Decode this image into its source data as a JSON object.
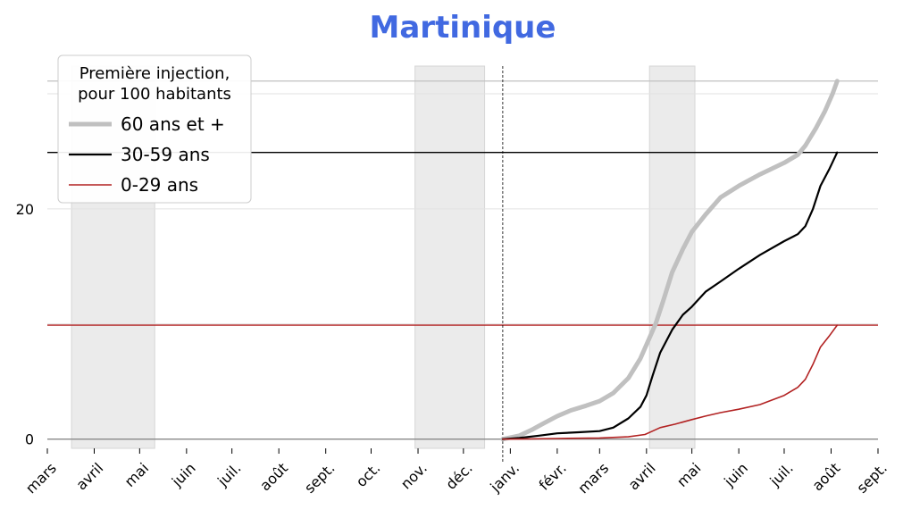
{
  "chart_data": {
    "type": "line",
    "title": "Martinique",
    "ylim": [
      -0.8,
      32.4
    ],
    "y_ticks": [
      0,
      20
    ],
    "x_ticks": [
      "mars",
      "avril",
      "mai",
      "juin",
      "juil.",
      "août",
      "sept.",
      "oct.",
      "nov.",
      "déc.",
      "janv.",
      "févr.",
      "mars",
      "avril",
      "mai",
      "juin",
      "juil.",
      "août",
      "sept."
    ],
    "x_tick_dates": [
      "2020-03-01",
      "2020-04-01",
      "2020-05-01",
      "2020-06-01",
      "2020-07-01",
      "2020-08-01",
      "2020-09-01",
      "2020-10-01",
      "2020-11-01",
      "2020-12-01",
      "2021-01-01",
      "2021-02-01",
      "2021-03-01",
      "2021-04-01",
      "2021-05-01",
      "2021-06-01",
      "2021-07-01",
      "2021-08-01",
      "2021-09-01"
    ],
    "x_range": [
      "2020-03-01",
      "2021-09-01"
    ],
    "lockdown_periods": [
      [
        "2020-03-17",
        "2020-05-11"
      ],
      [
        "2020-10-30",
        "2020-12-15"
      ],
      [
        "2021-04-03",
        "2021-05-03"
      ]
    ],
    "vaccination_start": "2020-12-27",
    "legend_title": "Première injection,\npour 100 habitants",
    "legend_position": "top-left",
    "grid": "horizontal",
    "series": [
      {
        "name": "60 ans et +",
        "color": "#c0c0c0",
        "points": [
          [
            "2020-12-27",
            0.0
          ],
          [
            "2021-01-07",
            0.3
          ],
          [
            "2021-01-15",
            0.8
          ],
          [
            "2021-01-22",
            1.3
          ],
          [
            "2021-02-01",
            2.0
          ],
          [
            "2021-02-10",
            2.5
          ],
          [
            "2021-02-20",
            2.9
          ],
          [
            "2021-03-01",
            3.3
          ],
          [
            "2021-03-10",
            4.0
          ],
          [
            "2021-03-20",
            5.3
          ],
          [
            "2021-03-28",
            7.0
          ],
          [
            "2021-04-02",
            8.5
          ],
          [
            "2021-04-07",
            10.0
          ],
          [
            "2021-04-12",
            12.0
          ],
          [
            "2021-04-18",
            14.5
          ],
          [
            "2021-04-25",
            16.5
          ],
          [
            "2021-05-01",
            18.0
          ],
          [
            "2021-05-10",
            19.5
          ],
          [
            "2021-05-20",
            21.0
          ],
          [
            "2021-06-01",
            22.0
          ],
          [
            "2021-06-15",
            23.0
          ],
          [
            "2021-07-01",
            24.0
          ],
          [
            "2021-07-10",
            24.7
          ],
          [
            "2021-07-15",
            25.5
          ],
          [
            "2021-07-22",
            27.0
          ],
          [
            "2021-07-28",
            28.5
          ],
          [
            "2021-08-02",
            30.0
          ],
          [
            "2021-08-05",
            31.1
          ]
        ]
      },
      {
        "name": "30-59 ans",
        "color": "#000000",
        "points": [
          [
            "2020-12-27",
            0.0
          ],
          [
            "2021-01-07",
            0.1
          ],
          [
            "2021-01-20",
            0.3
          ],
          [
            "2021-02-01",
            0.5
          ],
          [
            "2021-02-15",
            0.6
          ],
          [
            "2021-03-01",
            0.7
          ],
          [
            "2021-03-10",
            1.0
          ],
          [
            "2021-03-20",
            1.8
          ],
          [
            "2021-03-28",
            2.8
          ],
          [
            "2021-04-01",
            3.8
          ],
          [
            "2021-04-05",
            5.5
          ],
          [
            "2021-04-10",
            7.5
          ],
          [
            "2021-04-18",
            9.5
          ],
          [
            "2021-04-25",
            10.8
          ],
          [
            "2021-05-01",
            11.5
          ],
          [
            "2021-05-10",
            12.8
          ],
          [
            "2021-05-20",
            13.7
          ],
          [
            "2021-06-01",
            14.8
          ],
          [
            "2021-06-15",
            16.0
          ],
          [
            "2021-07-01",
            17.2
          ],
          [
            "2021-07-10",
            17.8
          ],
          [
            "2021-07-15",
            18.5
          ],
          [
            "2021-07-20",
            20.0
          ],
          [
            "2021-07-25",
            22.0
          ],
          [
            "2021-07-31",
            23.5
          ],
          [
            "2021-08-05",
            24.9
          ]
        ]
      },
      {
        "name": "0-29 ans",
        "color": "#b22222",
        "points": [
          [
            "2020-12-27",
            0.0
          ],
          [
            "2021-01-15",
            0.02
          ],
          [
            "2021-02-01",
            0.05
          ],
          [
            "2021-03-01",
            0.1
          ],
          [
            "2021-03-20",
            0.2
          ],
          [
            "2021-03-31",
            0.4
          ],
          [
            "2021-04-05",
            0.7
          ],
          [
            "2021-04-10",
            1.0
          ],
          [
            "2021-04-20",
            1.3
          ],
          [
            "2021-05-01",
            1.7
          ],
          [
            "2021-05-10",
            2.0
          ],
          [
            "2021-05-20",
            2.3
          ],
          [
            "2021-06-01",
            2.6
          ],
          [
            "2021-06-15",
            3.0
          ],
          [
            "2021-07-01",
            3.8
          ],
          [
            "2021-07-10",
            4.5
          ],
          [
            "2021-07-15",
            5.2
          ],
          [
            "2021-07-20",
            6.5
          ],
          [
            "2021-07-25",
            8.0
          ],
          [
            "2021-07-31",
            9.0
          ],
          [
            "2021-08-05",
            9.9
          ]
        ]
      }
    ],
    "reference_lines": [
      {
        "value": 31.1,
        "color": "#c0c0c0"
      },
      {
        "value": 24.9,
        "color": "#000000"
      },
      {
        "value": 9.9,
        "color": "#b22222"
      }
    ]
  }
}
